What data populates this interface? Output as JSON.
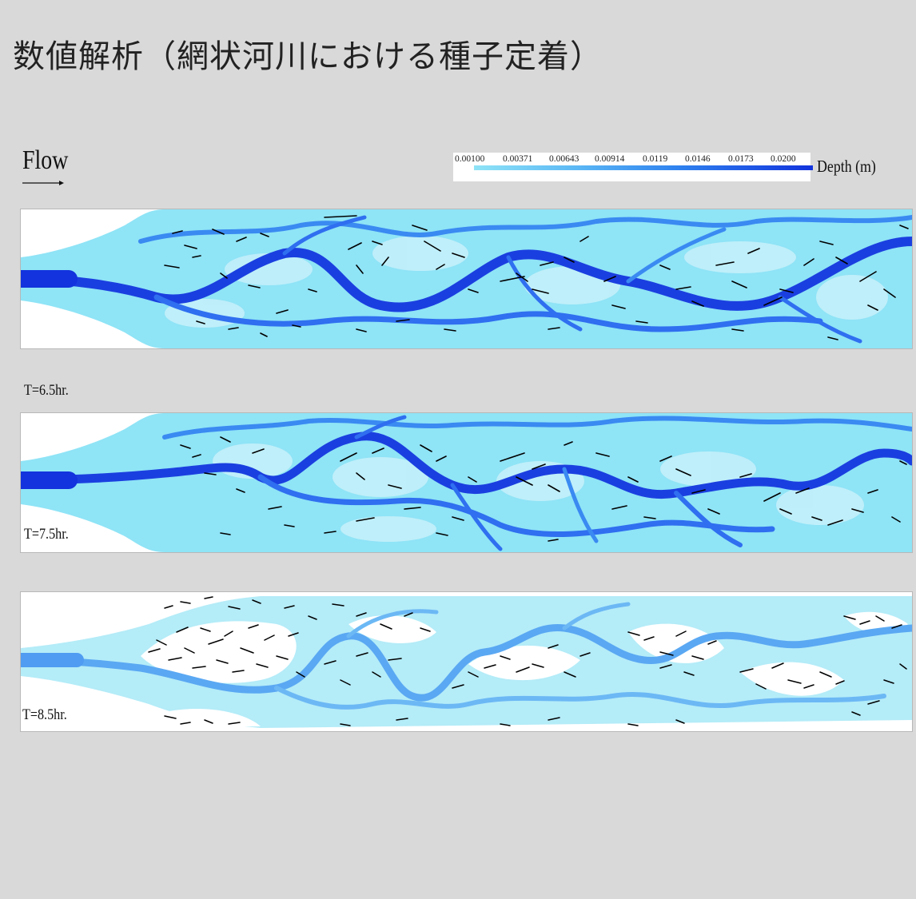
{
  "title": "数値解析（網状河川における種子定着）",
  "flow_label": "Flow",
  "legend": {
    "ticks": [
      "0.00100",
      "0.00371",
      "0.00643",
      "0.00914",
      "0.0119",
      "0.0146",
      "0.0173",
      "0.0200"
    ],
    "unit": "Depth (m)",
    "colors": [
      "#8fe4f6",
      "#5cb8f5",
      "#2f82ef",
      "#1233dd"
    ]
  },
  "panels": [
    {
      "time": "T=6.5hr."
    },
    {
      "time": "T=7.5hr."
    },
    {
      "time": "T=8.5hr."
    }
  ],
  "colors": {
    "background": "#d9d9d9",
    "water_shallow": "#8fe4f6",
    "water_deep": "#1a3fe0",
    "seedling": "#000000"
  }
}
